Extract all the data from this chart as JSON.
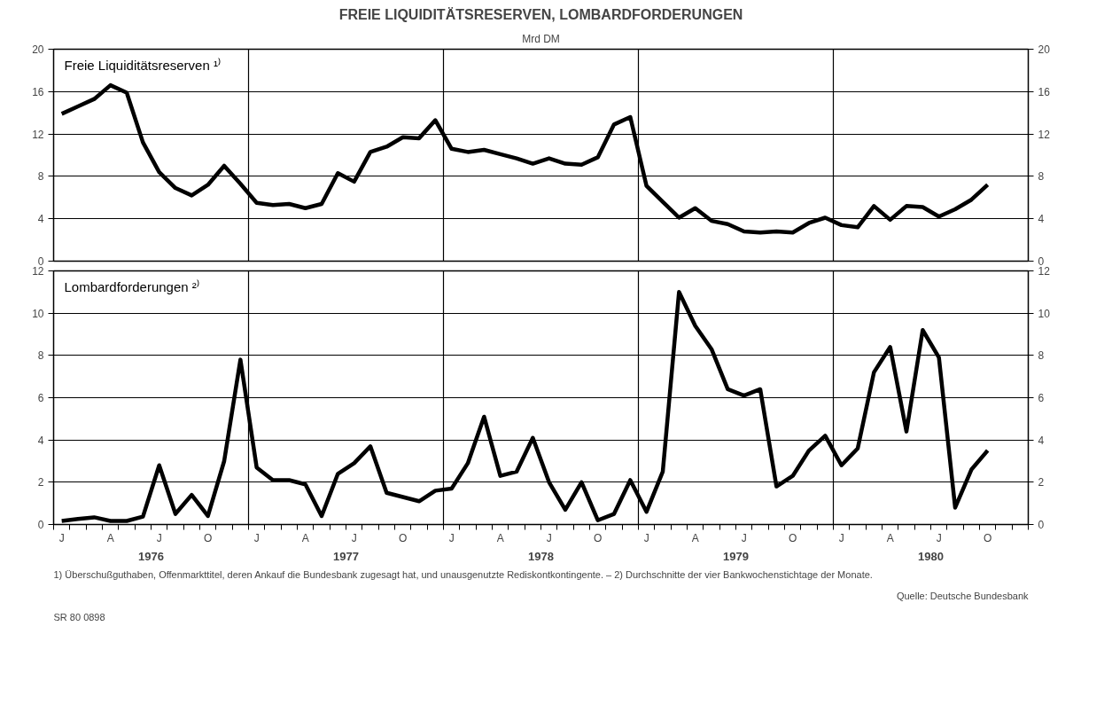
{
  "chart_data": [
    {
      "type": "line",
      "title": "FREIE LIQUIDITÄTSRESERVEN, LOMBARDFORDERUNGEN",
      "subtitle": "Mrd DM",
      "categories": [
        null,
        null,
        null,
        null,
        null,
        null,
        null,
        null,
        null,
        null,
        null,
        null,
        null,
        null,
        null,
        null,
        null,
        null,
        null,
        null,
        null,
        null,
        null,
        null,
        null,
        null,
        null,
        null,
        null,
        null,
        null,
        null,
        null,
        null,
        null,
        null,
        null,
        null,
        null,
        null,
        null,
        null,
        null,
        null,
        null,
        null,
        null,
        null,
        null,
        null,
        null,
        null,
        null,
        null,
        null,
        null,
        null,
        null,
        null,
        null
      ],
      "series": [
        {
          "name": "Freie Liquiditätsreserven ¹⁾",
          "color": "#000000",
          "values": [
            13.9,
            14.6,
            15.3,
            16.6,
            15.9,
            11.2,
            8.4,
            6.9,
            6.2,
            7.2,
            9.0,
            7.3,
            5.5,
            5.3,
            5.4,
            5.0,
            5.4,
            8.3,
            7.5,
            10.3,
            10.8,
            11.7,
            11.6,
            13.3,
            10.6,
            10.3,
            10.5,
            10.1,
            9.7,
            9.2,
            9.7,
            9.2,
            9.1,
            9.8,
            12.9,
            13.6,
            7.1,
            5.6,
            4.1,
            5.0,
            3.8,
            3.5,
            2.8,
            2.7,
            2.8,
            2.7,
            3.6,
            4.1,
            3.4,
            3.2,
            5.2,
            3.9,
            5.2,
            5.1,
            4.2,
            4.9,
            5.8,
            7.2,
            null,
            null
          ]
        }
      ],
      "ylim": [
        0,
        20
      ],
      "yticks": [
        0,
        4,
        8,
        12,
        16,
        20
      ],
      "y2lim": [
        0,
        20
      ],
      "y2ticks": [
        0,
        4,
        8,
        12,
        16,
        20
      ],
      "grid": "y",
      "tick_labels": "y",
      "legend": "top left",
      "marker": "none",
      "line_style": "solid"
    },
    {
      "type": "line",
      "categories": [
        "J",
        null,
        null,
        "A",
        null,
        null,
        "J",
        null,
        null,
        "O",
        null,
        null,
        "J",
        null,
        null,
        "A",
        null,
        null,
        "J",
        null,
        null,
        "O",
        null,
        null,
        "J",
        null,
        null,
        "A",
        null,
        null,
        "J",
        null,
        null,
        "O",
        null,
        null,
        "J",
        null,
        null,
        "A",
        null,
        null,
        "J",
        null,
        null,
        "O",
        null,
        null,
        "J",
        null,
        null,
        "A",
        null,
        null,
        "J",
        null,
        null,
        "O",
        null,
        null
      ],
      "series": [
        {
          "name": "Lombardforderungen ²⁾",
          "color": "#000000",
          "values": [
            0.17,
            0.26,
            0.34,
            0.17,
            0.17,
            0.37,
            2.8,
            0.5,
            1.4,
            0.4,
            3.0,
            7.8,
            2.7,
            2.1,
            2.1,
            1.9,
            0.4,
            2.4,
            2.9,
            3.7,
            1.5,
            1.3,
            1.1,
            1.6,
            1.7,
            2.9,
            5.1,
            2.3,
            2.5,
            4.1,
            2.0,
            0.7,
            2.0,
            0.2,
            0.5,
            2.1,
            0.6,
            2.5,
            11.0,
            9.4,
            8.3,
            6.4,
            6.1,
            6.4,
            1.8,
            2.3,
            3.5,
            4.2,
            2.8,
            3.6,
            7.2,
            8.4,
            4.4,
            9.2,
            7.9,
            0.8,
            2.6,
            3.5,
            null,
            null
          ]
        }
      ],
      "ylim": [
        0,
        12
      ],
      "yticks": [
        0,
        2,
        4,
        6,
        8,
        10,
        12
      ],
      "y2lim": [
        0,
        12
      ],
      "y2ticks": [
        0,
        2,
        4,
        6,
        8,
        10,
        12
      ],
      "grid": "y",
      "legend": "top left",
      "marker": "none",
      "line_style": "solid",
      "annotations": [
        "1976",
        "1977",
        "1978",
        "1979",
        "1980",
        "1) Überschußguthaben, Offenmarkttitel, deren Ankauf die Bundesbank zugesagt hat, und unausgenutzte Rediskontkontingente. – 2) Durchschnitte der vier Bankwochenstichtage der Monate.",
        "Quelle: Deutsche Bundesbank",
        "SR 80 0898"
      ]
    }
  ]
}
